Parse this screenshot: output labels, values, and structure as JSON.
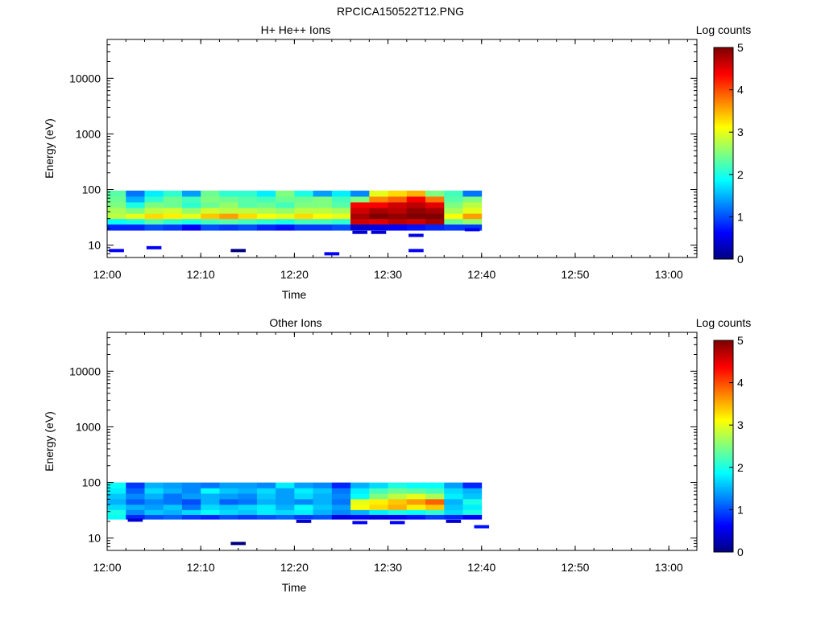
{
  "figure_title": "RPCICA150522T12.PNG",
  "colors": {
    "colormap": [
      "#00007f",
      "#0000ff",
      "#007fff",
      "#00ffff",
      "#7fff7f",
      "#ffff00",
      "#ff7f00",
      "#ff0000",
      "#7f0000"
    ]
  },
  "chart_data": [
    {
      "type": "heatmap",
      "title": "H+ He++ Ions",
      "xlabel": "Time",
      "ylabel": "Energy (eV)",
      "x_ticks": [
        "12:00",
        "12:10",
        "12:20",
        "12:30",
        "12:40",
        "12:50",
        "13:00"
      ],
      "xlim": [
        "12:00",
        "13:03"
      ],
      "y_scale": "log",
      "y_ticks": [
        "10",
        "100",
        "1000",
        "10000"
      ],
      "ylim": [
        6,
        50000
      ],
      "colorbar": {
        "label": "Log counts",
        "ticks": [
          "0",
          "1",
          "2",
          "3",
          "4",
          "5"
        ],
        "range": [
          0,
          5
        ]
      },
      "time_bins": [
        "12:01",
        "12:03",
        "12:05",
        "12:07",
        "12:09",
        "12:11",
        "12:13",
        "12:15",
        "12:17",
        "12:19",
        "12:21",
        "12:23",
        "12:25",
        "12:27",
        "12:29",
        "12:31",
        "12:33",
        "12:35",
        "12:37",
        "12:39"
      ],
      "energy_bins": [
        21,
        27,
        33,
        42,
        53,
        67,
        85
      ],
      "log_counts": [
        [
          0.8,
          0.8,
          1.0,
          0.9,
          0.6,
          1.0,
          0.9,
          1.0,
          0.8,
          0.7,
          0.9,
          0.9,
          1.0,
          0.4,
          0.5,
          0.6,
          0.7,
          0.8,
          0.9,
          0.9
        ],
        [
          1.9,
          2.0,
          2.3,
          2.1,
          2.0,
          2.2,
          2.3,
          2.2,
          2.1,
          2.0,
          2.2,
          2.2,
          2.1,
          4.6,
          4.5,
          4.7,
          4.6,
          4.8,
          2.4,
          2.6
        ],
        [
          2.8,
          3.0,
          3.3,
          3.2,
          3.0,
          3.4,
          3.6,
          3.3,
          3.1,
          3.0,
          3.3,
          3.1,
          3.0,
          4.8,
          5.0,
          4.9,
          5.0,
          5.0,
          3.1,
          3.6
        ],
        [
          2.7,
          2.5,
          2.8,
          2.9,
          2.6,
          2.9,
          2.8,
          2.8,
          2.7,
          2.6,
          2.8,
          2.8,
          2.7,
          4.6,
          4.8,
          4.7,
          4.9,
          4.8,
          2.7,
          3.0
        ],
        [
          2.5,
          2.0,
          2.5,
          2.4,
          2.1,
          2.4,
          2.6,
          2.3,
          2.4,
          2.2,
          2.5,
          2.5,
          2.3,
          4.4,
          4.4,
          4.6,
          4.7,
          4.5,
          2.5,
          2.8
        ],
        [
          2.4,
          1.5,
          2.1,
          2.4,
          2.2,
          2.5,
          2.4,
          2.3,
          2.2,
          2.4,
          2.4,
          2.5,
          2.2,
          2.5,
          3.7,
          3.9,
          4.4,
          3.8,
          2.3,
          2.5
        ],
        [
          2.3,
          1.2,
          1.8,
          2.1,
          1.4,
          2.4,
          2.1,
          2.1,
          1.8,
          2.5,
          2.0,
          1.4,
          1.8,
          1.3,
          3.0,
          3.3,
          3.5,
          2.5,
          2.2,
          1.2
        ]
      ],
      "sparse_points": [
        {
          "time": "12:01",
          "energy": 8,
          "log_counts": 0.6
        },
        {
          "time": "12:05",
          "energy": 9,
          "log_counts": 0.6
        },
        {
          "time": "12:14",
          "energy": 8,
          "log_counts": 0.0
        },
        {
          "time": "12:24",
          "energy": 7,
          "log_counts": 0.6
        },
        {
          "time": "12:27",
          "energy": 17,
          "log_counts": 0.4
        },
        {
          "time": "12:29",
          "energy": 17,
          "log_counts": 0.4
        },
        {
          "time": "12:33",
          "energy": 15,
          "log_counts": 0.5
        },
        {
          "time": "12:33",
          "energy": 8,
          "log_counts": 0.6
        },
        {
          "time": "12:39",
          "energy": 19,
          "log_counts": 0.6
        }
      ]
    },
    {
      "type": "heatmap",
      "title": "Other Ions",
      "xlabel": "Time",
      "ylabel": "Energy (eV)",
      "x_ticks": [
        "12:00",
        "12:10",
        "12:20",
        "12:30",
        "12:40",
        "12:50",
        "13:00"
      ],
      "xlim": [
        "12:00",
        "13:03"
      ],
      "y_scale": "log",
      "y_ticks": [
        "10",
        "100",
        "1000",
        "10000"
      ],
      "ylim": [
        6,
        50000
      ],
      "colorbar": {
        "label": "Log counts",
        "ticks": [
          "0",
          "1",
          "2",
          "3",
          "4",
          "5"
        ],
        "range": [
          0,
          5
        ]
      },
      "time_bins": [
        "12:01",
        "12:03",
        "12:05",
        "12:07",
        "12:09",
        "12:11",
        "12:13",
        "12:15",
        "12:17",
        "12:19",
        "12:21",
        "12:23",
        "12:25",
        "12:27",
        "12:29",
        "12:31",
        "12:33",
        "12:35",
        "12:37",
        "12:39"
      ],
      "energy_bins": [
        24,
        29,
        36,
        45,
        57,
        71,
        89
      ],
      "log_counts": [
        [
          1.9,
          0.8,
          1.0,
          1.1,
          0.9,
          0.8,
          1.0,
          0.9,
          1.0,
          1.1,
          0.9,
          1.0,
          0.5,
          0.6,
          0.5,
          0.6,
          0.7,
          0.9,
          0.8,
          0.6
        ],
        [
          2.0,
          1.3,
          1.6,
          1.5,
          1.7,
          1.9,
          1.7,
          1.6,
          1.8,
          1.7,
          1.8,
          1.5,
          1.3,
          1.5,
          1.8,
          2.0,
          1.9,
          2.1,
          1.7,
          2.0
        ],
        [
          1.7,
          1.5,
          1.4,
          1.6,
          1.2,
          1.7,
          1.6,
          1.7,
          1.8,
          1.5,
          1.9,
          1.6,
          1.4,
          3.1,
          3.3,
          3.5,
          3.2,
          3.4,
          1.6,
          1.8
        ],
        [
          1.5,
          1.1,
          1.3,
          1.2,
          1.0,
          1.5,
          1.1,
          1.2,
          1.5,
          1.4,
          1.3,
          1.5,
          1.2,
          3.0,
          3.2,
          3.4,
          3.6,
          3.9,
          1.5,
          2.0
        ],
        [
          1.6,
          1.3,
          1.5,
          1.2,
          1.4,
          1.5,
          1.4,
          1.3,
          1.6,
          1.4,
          1.7,
          1.5,
          1.3,
          1.9,
          2.5,
          2.8,
          3.0,
          2.7,
          1.8,
          1.6
        ],
        [
          1.8,
          1.1,
          1.7,
          1.5,
          1.3,
          1.9,
          1.6,
          1.5,
          1.7,
          1.4,
          1.8,
          1.6,
          1.2,
          1.8,
          2.2,
          2.4,
          2.3,
          2.2,
          1.7,
          1.5
        ],
        [
          1.9,
          0.9,
          1.5,
          1.4,
          1.3,
          1.2,
          1.4,
          1.4,
          1.3,
          1.8,
          1.4,
          1.3,
          0.8,
          1.5,
          1.7,
          2.0,
          1.9,
          1.9,
          1.4,
          0.8
        ]
      ],
      "sparse_points": [
        {
          "time": "12:03",
          "energy": 21,
          "log_counts": 0.4
        },
        {
          "time": "12:14",
          "energy": 8,
          "log_counts": 0.0
        },
        {
          "time": "12:21",
          "energy": 20,
          "log_counts": 0.4
        },
        {
          "time": "12:27",
          "energy": 19,
          "log_counts": 0.6
        },
        {
          "time": "12:31",
          "energy": 19,
          "log_counts": 0.6
        },
        {
          "time": "12:37",
          "energy": 20,
          "log_counts": 0.4
        },
        {
          "time": "12:40",
          "energy": 16,
          "log_counts": 0.7
        }
      ]
    }
  ]
}
